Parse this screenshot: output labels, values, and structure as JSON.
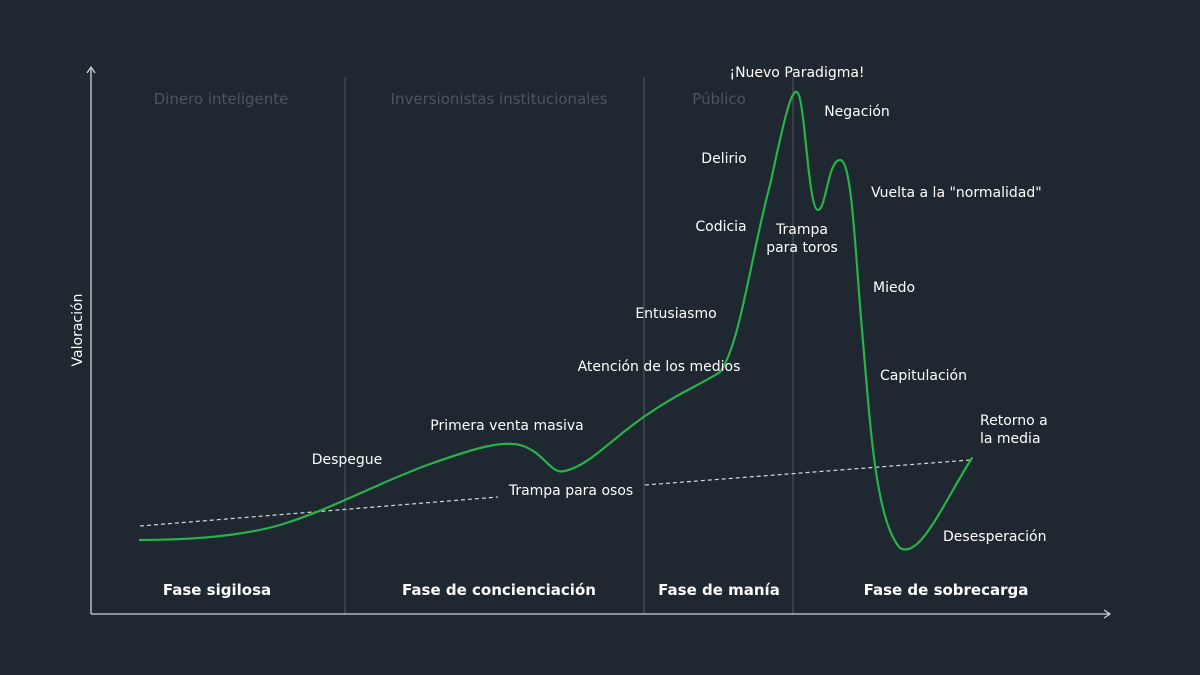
{
  "y_axis_label": "Valoración",
  "groups": [
    "Dinero inteligente",
    "Inversionistas institucionales",
    "Público"
  ],
  "phases": [
    "Fase sigilosa",
    "Fase de concienciación",
    "Fase de manía",
    "Fase de sobrecarga"
  ],
  "stages": {
    "despegue": "Despegue",
    "primera_venta": "Primera venta masiva",
    "trampa_osos": "Trampa para osos",
    "atencion_medios": "Atención de los medios",
    "entusiasmo": "Entusiasmo",
    "codicia": "Codicia",
    "delirio": "Delirio",
    "nuevo_paradigma": "¡Nuevo Paradigma!",
    "negacion": "Negación",
    "trampa_toros_1": "Trampa",
    "trampa_toros_2": "para toros",
    "vuelta_normalidad": "Vuelta a la \"normalidad\"",
    "miedo": "Miedo",
    "capitulacion": "Capitulación",
    "retorno_1": "Retorno a",
    "retorno_2": "la media",
    "desesperacion": "Desesperación"
  },
  "colors": {
    "background": "#1f2730",
    "curve": "#27b24a",
    "axis": "#cfd4d9",
    "divider": "#4a535c",
    "group_text": "#4b5560",
    "text": "#ffffff"
  }
}
